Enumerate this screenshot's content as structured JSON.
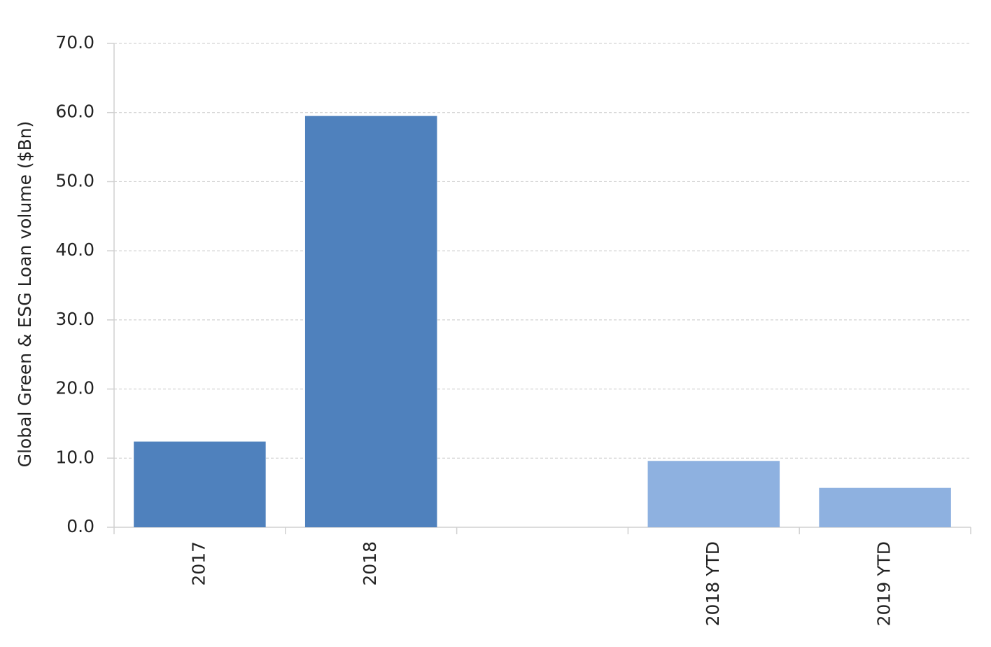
{
  "chart_data": {
    "type": "bar",
    "y_label": "Global Green & ESG Loan volume ($Bn)",
    "categories": [
      "2017",
      "2018",
      null,
      "2018 YTD",
      "2019 YTD"
    ],
    "values": [
      12.4,
      59.5,
      null,
      9.6,
      5.7
    ],
    "colors": [
      "#4f81bd",
      "#4f81bd",
      null,
      "#8eb1e0",
      "#8eb1e0"
    ],
    "ylim": [
      0,
      70
    ],
    "yticks": [
      {
        "value": 0,
        "label": "0.0"
      },
      {
        "value": 10,
        "label": "10.0"
      },
      {
        "value": 20,
        "label": "20.0"
      },
      {
        "value": 30,
        "label": "30.0"
      },
      {
        "value": 40,
        "label": "40.0"
      },
      {
        "value": 50,
        "label": "50.0"
      },
      {
        "value": 60,
        "label": "60.0"
      },
      {
        "value": 70,
        "label": "70.0"
      }
    ],
    "grid": true
  }
}
